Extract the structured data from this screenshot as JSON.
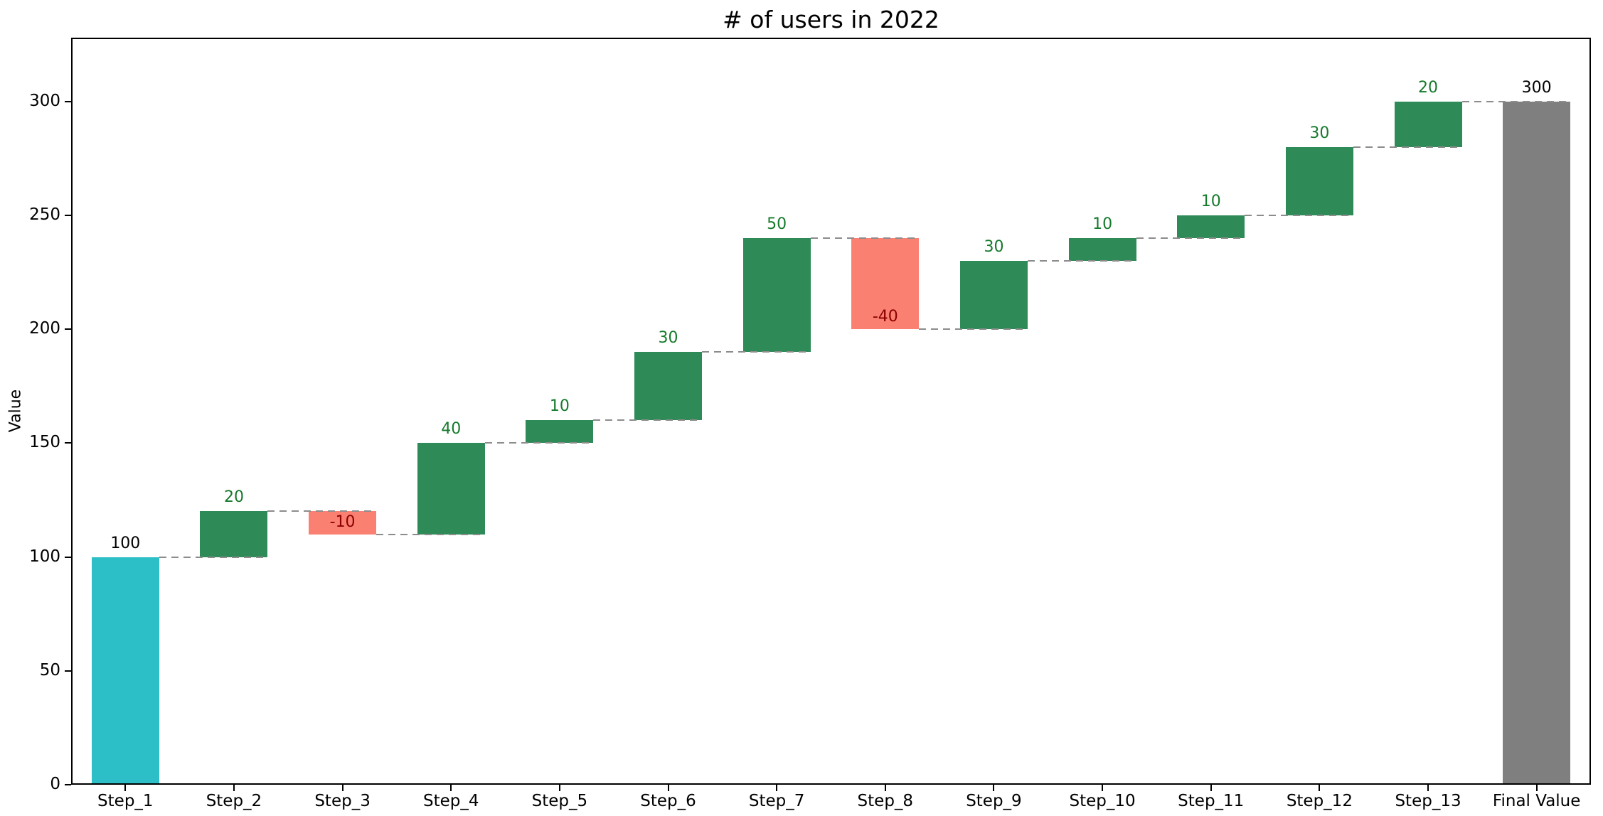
{
  "chart_data": {
    "type": "bar",
    "subtype": "waterfall",
    "title": "# of users in 2022",
    "xlabel": "",
    "ylabel": "Value",
    "ylim": [
      0,
      328
    ],
    "yticks": [
      0,
      50,
      100,
      150,
      200,
      250,
      300
    ],
    "grid": false,
    "legend": "none",
    "categories": [
      "Step_1",
      "Step_2",
      "Step_3",
      "Step_4",
      "Step_5",
      "Step_6",
      "Step_7",
      "Step_8",
      "Step_9",
      "Step_10",
      "Step_11",
      "Step_12",
      "Step_13",
      "Final Value"
    ],
    "values": [
      100,
      20,
      -10,
      40,
      10,
      30,
      50,
      -40,
      30,
      10,
      10,
      30,
      20,
      300
    ],
    "roles": [
      "start",
      "delta",
      "delta",
      "delta",
      "delta",
      "delta",
      "delta",
      "delta",
      "delta",
      "delta",
      "delta",
      "delta",
      "delta",
      "total"
    ],
    "cumulative": [
      100,
      120,
      110,
      150,
      160,
      190,
      240,
      200,
      230,
      240,
      250,
      280,
      300,
      300
    ],
    "connector_style": "dashed",
    "colors": {
      "start_bar": "#2cbfc7",
      "positive_bar": "#2e8b57",
      "negative_bar": "#fa8072",
      "total_bar": "#7f7f7f",
      "connector": "#8c8c8c",
      "positive_label": "#157a2b",
      "negative_label": "#8b0000",
      "endpoint_label": "#000000"
    }
  }
}
